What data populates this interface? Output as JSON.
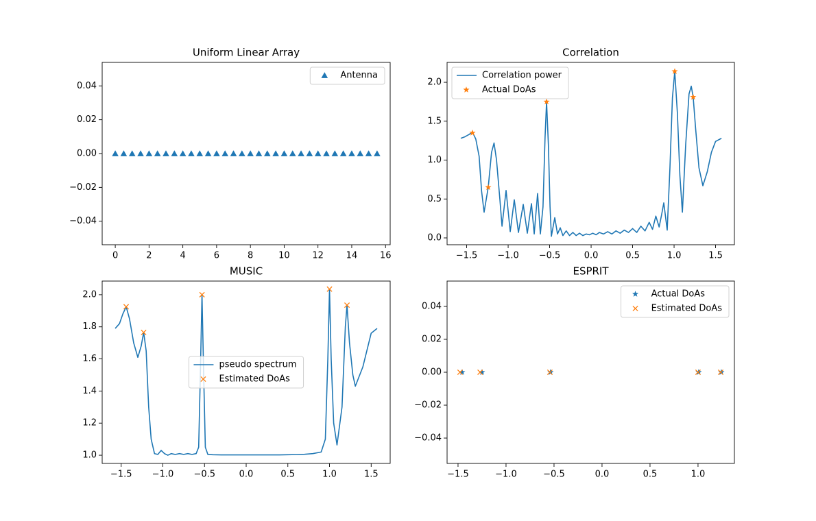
{
  "chart_data": [
    {
      "type": "scatter",
      "title": "Uniform Linear Array",
      "legend": "upper right",
      "xlim": [
        -0.775,
        16.275
      ],
      "xticks": [
        0,
        2,
        4,
        6,
        8,
        10,
        12,
        14,
        16
      ],
      "ylim": [
        -0.0539,
        0.0539
      ],
      "yticks": [
        {
          "value": -0.04,
          "label": "−0.04"
        },
        {
          "value": -0.02,
          "label": "−0.02"
        },
        {
          "value": 0,
          "label": "0.00"
        },
        0.02,
        0.04
      ],
      "series": [
        {
          "name": "Antenna",
          "color": "#1f77b4",
          "marker": "^",
          "x": [
            0,
            0.5,
            1,
            1.5,
            2,
            2.5,
            3,
            3.5,
            4,
            4.5,
            5,
            5.5,
            6,
            6.5,
            7,
            7.5,
            8,
            8.5,
            9,
            9.5,
            10,
            10.5,
            11,
            11.5,
            12,
            12.5,
            13,
            13.5,
            14,
            14.5,
            15,
            15.5
          ],
          "values": [
            0,
            0,
            0,
            0,
            0,
            0,
            0,
            0,
            0,
            0,
            0,
            0,
            0,
            0,
            0,
            0,
            0,
            0,
            0,
            0,
            0,
            0,
            0,
            0,
            0,
            0,
            0,
            0,
            0,
            0,
            0,
            0
          ]
        }
      ]
    },
    {
      "type": "line",
      "title": "Correlation",
      "legend": "upper left",
      "xlim": [
        -1.736,
        1.727
      ],
      "xticks": [
        {
          "value": -1.5,
          "label": "−1.5"
        },
        {
          "value": -1.0,
          "label": "−1.0"
        },
        {
          "value": -0.5,
          "label": "−0.5"
        },
        {
          "value": 0,
          "label": "0.0"
        },
        0.5,
        {
          "value": 1.0,
          "label": "1.0"
        },
        1.5
      ],
      "ylim": [
        -0.088,
        2.256
      ],
      "yticks": [
        {
          "value": 0,
          "label": "0.0"
        },
        0.5,
        {
          "value": 1.0,
          "label": "1.0"
        },
        1.5,
        {
          "value": 2.0,
          "label": "2.0"
        }
      ],
      "series": [
        {
          "name": "Correlation power",
          "color": "#1f77b4",
          "x": [
            -1.571,
            -1.52,
            -1.47,
            -1.43,
            -1.39,
            -1.35,
            -1.32,
            -1.29,
            -1.24,
            -1.2,
            -1.17,
            -1.14,
            -1.1,
            -1.074,
            -1.025,
            -0.975,
            -0.926,
            -0.876,
            -0.818,
            -0.769,
            -0.719,
            -0.686,
            -0.645,
            -0.612,
            -0.58,
            -0.555,
            -0.537,
            -0.515,
            -0.495,
            -0.479,
            -0.438,
            -0.405,
            -0.372,
            -0.34,
            -0.3,
            -0.26,
            -0.22,
            -0.18,
            -0.14,
            -0.1,
            -0.06,
            -0.02,
            0.02,
            0.06,
            0.1,
            0.15,
            0.2,
            0.25,
            0.3,
            0.35,
            0.4,
            0.45,
            0.5,
            0.55,
            0.6,
            0.65,
            0.7,
            0.74,
            0.78,
            0.82,
            0.85,
            0.876,
            0.917,
            0.95,
            0.98,
            1.008,
            1.04,
            1.07,
            1.1,
            1.14,
            1.18,
            1.207,
            1.23,
            1.26,
            1.3,
            1.347,
            1.4,
            1.45,
            1.5,
            1.571
          ],
          "values": [
            1.28,
            1.3,
            1.33,
            1.36,
            1.27,
            1.05,
            0.6,
            0.33,
            0.65,
            1.1,
            1.22,
            1.0,
            0.5,
            0.15,
            0.61,
            0.08,
            0.49,
            0.07,
            0.43,
            0.06,
            0.44,
            0.05,
            0.57,
            0.05,
            0.4,
            1.3,
            1.75,
            1.2,
            0.4,
            0.02,
            0.26,
            0.05,
            0.13,
            0.03,
            0.09,
            0.03,
            0.07,
            0.03,
            0.06,
            0.03,
            0.05,
            0.04,
            0.06,
            0.04,
            0.07,
            0.05,
            0.08,
            0.05,
            0.09,
            0.06,
            0.1,
            0.07,
            0.12,
            0.07,
            0.15,
            0.09,
            0.2,
            0.11,
            0.28,
            0.14,
            0.3,
            0.45,
            0.1,
            0.9,
            1.8,
            2.14,
            1.6,
            0.8,
            0.33,
            1.2,
            1.85,
            1.95,
            1.81,
            1.4,
            0.9,
            0.67,
            0.85,
            1.1,
            1.24,
            1.28
          ]
        },
        {
          "name": "Actual DoAs",
          "color": "#ff7f0e",
          "marker": "*",
          "x": [
            -1.43,
            -1.24,
            -0.537,
            1.008,
            1.23
          ],
          "values": [
            1.35,
            0.65,
            1.75,
            2.14,
            1.81
          ]
        }
      ]
    },
    {
      "type": "line",
      "title": "MUSIC",
      "legend": "center",
      "xlim": [
        -1.728,
        1.728
      ],
      "xticks": [
        {
          "value": -1.5,
          "label": "−1.5"
        },
        {
          "value": -1.0,
          "label": "−1.0"
        },
        {
          "value": -0.5,
          "label": "−0.5"
        },
        {
          "value": 0,
          "label": "0.0"
        },
        0.5,
        {
          "value": 1.0,
          "label": "1.0"
        },
        1.5
      ],
      "ylim": [
        0.949,
        2.085
      ],
      "yticks": [
        {
          "value": 1.0,
          "label": "1.0"
        },
        1.2,
        1.4,
        1.6,
        1.8,
        {
          "value": 2.0,
          "label": "2.0"
        }
      ],
      "series": [
        {
          "name": "pseudo spectrum",
          "color": "#1f77b4",
          "x": [
            -1.571,
            -1.52,
            -1.48,
            -1.44,
            -1.4,
            -1.35,
            -1.3,
            -1.26,
            -1.23,
            -1.2,
            -1.17,
            -1.14,
            -1.1,
            -1.06,
            -1.02,
            -0.98,
            -0.94,
            -0.9,
            -0.85,
            -0.8,
            -0.75,
            -0.7,
            -0.65,
            -0.6,
            -0.57,
            -0.55,
            -0.53,
            -0.51,
            -0.49,
            -0.46,
            -0.4,
            -0.3,
            -0.2,
            -0.1,
            0,
            0.1,
            0.2,
            0.3,
            0.4,
            0.5,
            0.6,
            0.7,
            0.8,
            0.9,
            0.95,
            0.98,
            1.0,
            1.02,
            1.05,
            1.09,
            1.15,
            1.19,
            1.21,
            1.24,
            1.28,
            1.31,
            1.4,
            1.5,
            1.571
          ],
          "values": [
            1.79,
            1.82,
            1.88,
            1.925,
            1.85,
            1.7,
            1.61,
            1.68,
            1.765,
            1.65,
            1.3,
            1.1,
            1.01,
            1.005,
            1.03,
            1.01,
            1.0,
            1.01,
            1.005,
            1.01,
            1.005,
            1.01,
            1.005,
            1.01,
            1.05,
            1.5,
            2.0,
            1.5,
            1.05,
            1.005,
            1.003,
            1.002,
            1.002,
            1.002,
            1.002,
            1.002,
            1.002,
            1.002,
            1.002,
            1.003,
            1.004,
            1.006,
            1.01,
            1.02,
            1.1,
            1.6,
            2.035,
            1.6,
            1.2,
            1.064,
            1.3,
            1.8,
            1.935,
            1.7,
            1.5,
            1.43,
            1.55,
            1.76,
            1.79
          ]
        },
        {
          "name": "Estimated DoAs",
          "color": "#ff7f0e",
          "marker": "x",
          "x": [
            -1.44,
            -1.23,
            -0.53,
            1.0,
            1.21
          ],
          "values": [
            1.925,
            1.765,
            2.0,
            2.035,
            1.935
          ]
        }
      ]
    },
    {
      "type": "scatter",
      "title": "ESPRIT",
      "legend": "upper right",
      "xlim": [
        -1.614,
        1.379
      ],
      "xticks": [
        {
          "value": -1.5,
          "label": "−1.5"
        },
        {
          "value": -1.0,
          "label": "−1.0"
        },
        {
          "value": -0.5,
          "label": "−0.5"
        },
        {
          "value": 0,
          "label": "0.0"
        },
        0.5,
        {
          "value": 1.0,
          "label": "1.0"
        }
      ],
      "ylim": [
        -0.0554,
        0.0554
      ],
      "yticks": [
        {
          "value": -0.04,
          "label": "−0.04"
        },
        {
          "value": -0.02,
          "label": "−0.02"
        },
        {
          "value": 0,
          "label": "0.00"
        },
        0.02,
        0.04
      ],
      "series": [
        {
          "name": "Actual DoAs",
          "color": "#1f77b4",
          "marker": "*",
          "x": [
            -1.457,
            -1.25,
            -0.536,
            1.007,
            1.243
          ],
          "values": [
            0,
            0,
            0,
            0,
            0
          ]
        },
        {
          "name": "Estimated DoAs",
          "color": "#ff7f0e",
          "marker": "x",
          "x": [
            -1.479,
            -1.27,
            -0.543,
            1.0,
            1.236
          ],
          "values": [
            0,
            0,
            0,
            0,
            0
          ]
        }
      ]
    }
  ]
}
